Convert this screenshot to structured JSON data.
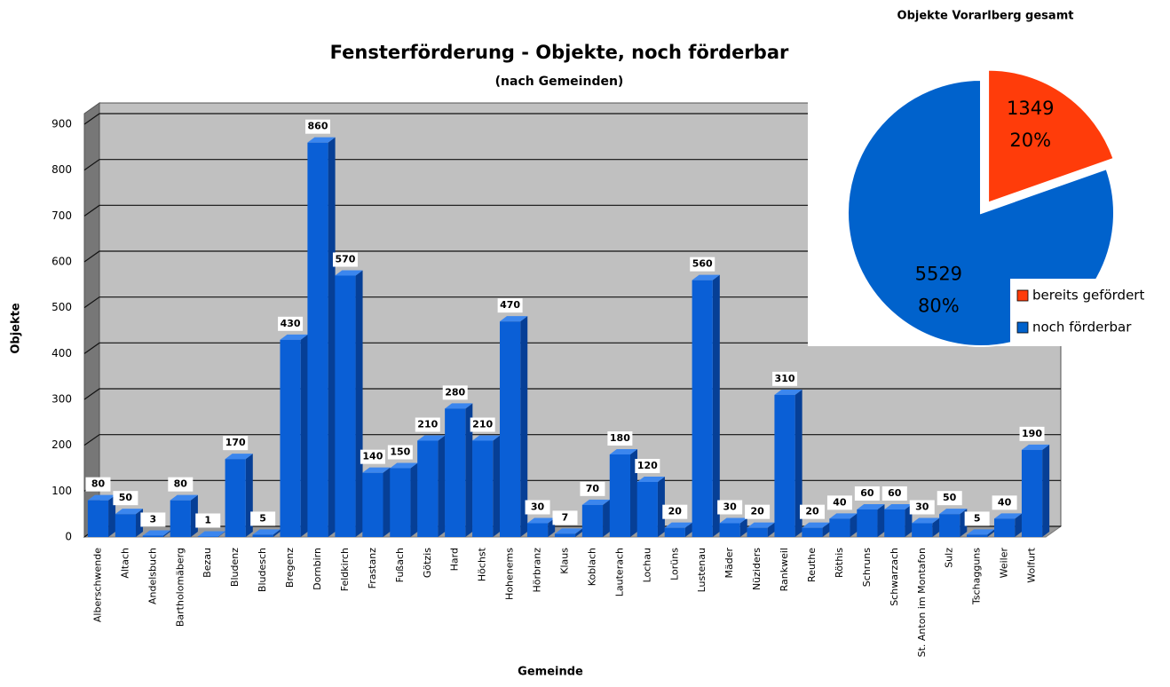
{
  "chart_data": [
    {
      "type": "bar",
      "title": "Fensterförderung - Objekte, noch förderbar",
      "subtitle": "(nach Gemeinden)",
      "y_label": "Objekte",
      "x_label": "Gemeinde",
      "categories": [
        "Alberschwende",
        "Altach",
        "Andelsbuch",
        "Bartholomäberg",
        "Bezau",
        "Bludenz",
        "Bludesch",
        "Bregenz",
        "Dornbirn",
        "Feldkirch",
        "Frastanz",
        "Fußach",
        "Götzis",
        "Hard",
        "Höchst",
        "Hohenems",
        "Hörbranz",
        "Klaus",
        "Koblach",
        "Lauterach",
        "Lochau",
        "Lorüns",
        "Lustenau",
        "Mäder",
        "Nüziders",
        "Rankweil",
        "Reuthe",
        "Röthis",
        "Schruns",
        "Schwarzach",
        "St. Anton im Montafon",
        "Sulz",
        "Tschagguns",
        "Weiler",
        "Wolfurt"
      ],
      "values": [
        80,
        50,
        3,
        80,
        1,
        170,
        5,
        430,
        860,
        570,
        140,
        150,
        210,
        280,
        210,
        470,
        30,
        7,
        70,
        180,
        120,
        20,
        560,
        30,
        20,
        310,
        20,
        40,
        60,
        60,
        30,
        50,
        5,
        40,
        190
      ],
      "color": "#0a5fd6",
      "ylim": [
        0,
        900
      ],
      "yticks": [
        0,
        100,
        200,
        300,
        400,
        500,
        600,
        700,
        800,
        900
      ],
      "grid": true
    },
    {
      "type": "pie",
      "title": "Objekte Vorarlberg gesamt",
      "categories": [
        "bereits gefördert",
        "noch förderbar"
      ],
      "values": [
        1349,
        5529
      ],
      "percent_labels": [
        "20%",
        "80%"
      ],
      "colors": [
        "#ff3c0a",
        "#0062cc"
      ],
      "legend": "bottom-right"
    }
  ]
}
